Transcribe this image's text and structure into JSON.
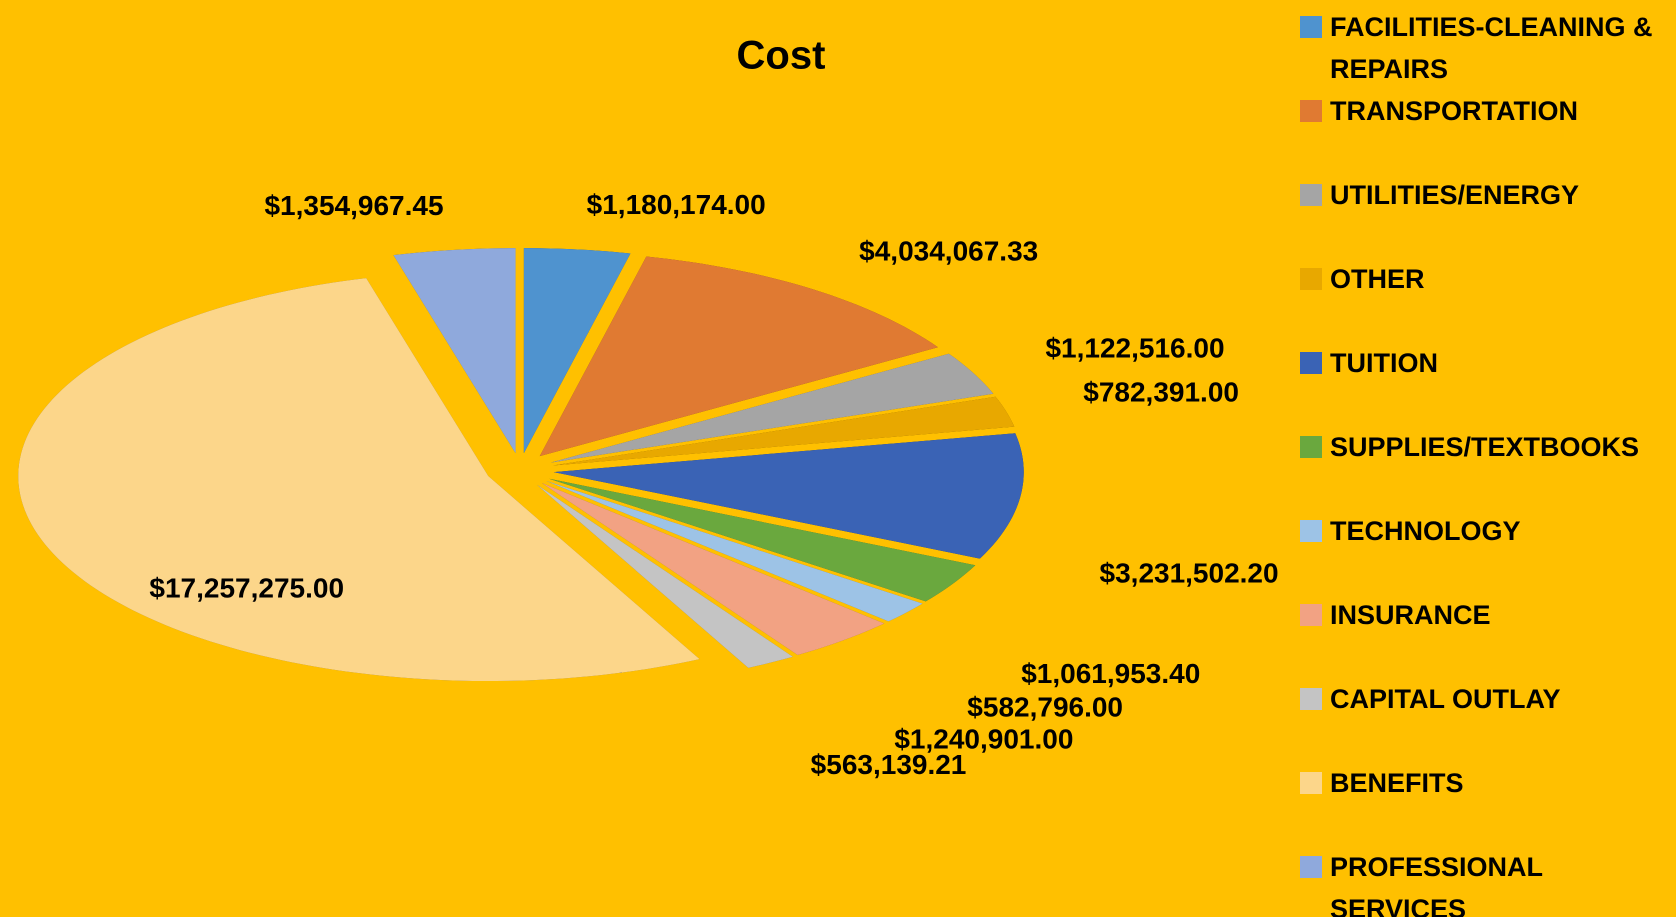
{
  "chart_data": {
    "type": "pie",
    "title": "Cost",
    "categories": [
      "FACILITIES-CLEANING & REPAIRS",
      "TRANSPORTATION",
      "UTILITIES/ENERGY",
      "OTHER",
      "TUITION",
      "SUPPLIES/TEXTBOOKS",
      "TECHNOLOGY",
      "INSURANCE",
      "CAPITAL OUTLAY",
      "BENEFITS",
      "PROFESSIONAL SERVICES"
    ],
    "values": [
      1180174.0,
      4034067.33,
      1122516.0,
      782391.0,
      3231502.2,
      1061953.4,
      582796.0,
      1240901.0,
      563139.21,
      17257275.0,
      1354967.45
    ],
    "value_labels": [
      "$1,180,174.00",
      "$4,034,067.33",
      "$1,122,516.00",
      "$782,391.00",
      "$3,231,502.20",
      "$1,061,953.40",
      "$582,796.00",
      "$1,240,901.00",
      "$563,139.21",
      "$17,257,275.00",
      "$1,354,967.45"
    ],
    "colors": [
      "#4f93cf",
      "#e07a32",
      "#a5a5a5",
      "#e8a800",
      "#3a63b5",
      "#6aa83e",
      "#9dc3e6",
      "#f2a283",
      "#c4c4c4",
      "#fcd68a",
      "#8fa9dc"
    ],
    "legend": "right"
  }
}
